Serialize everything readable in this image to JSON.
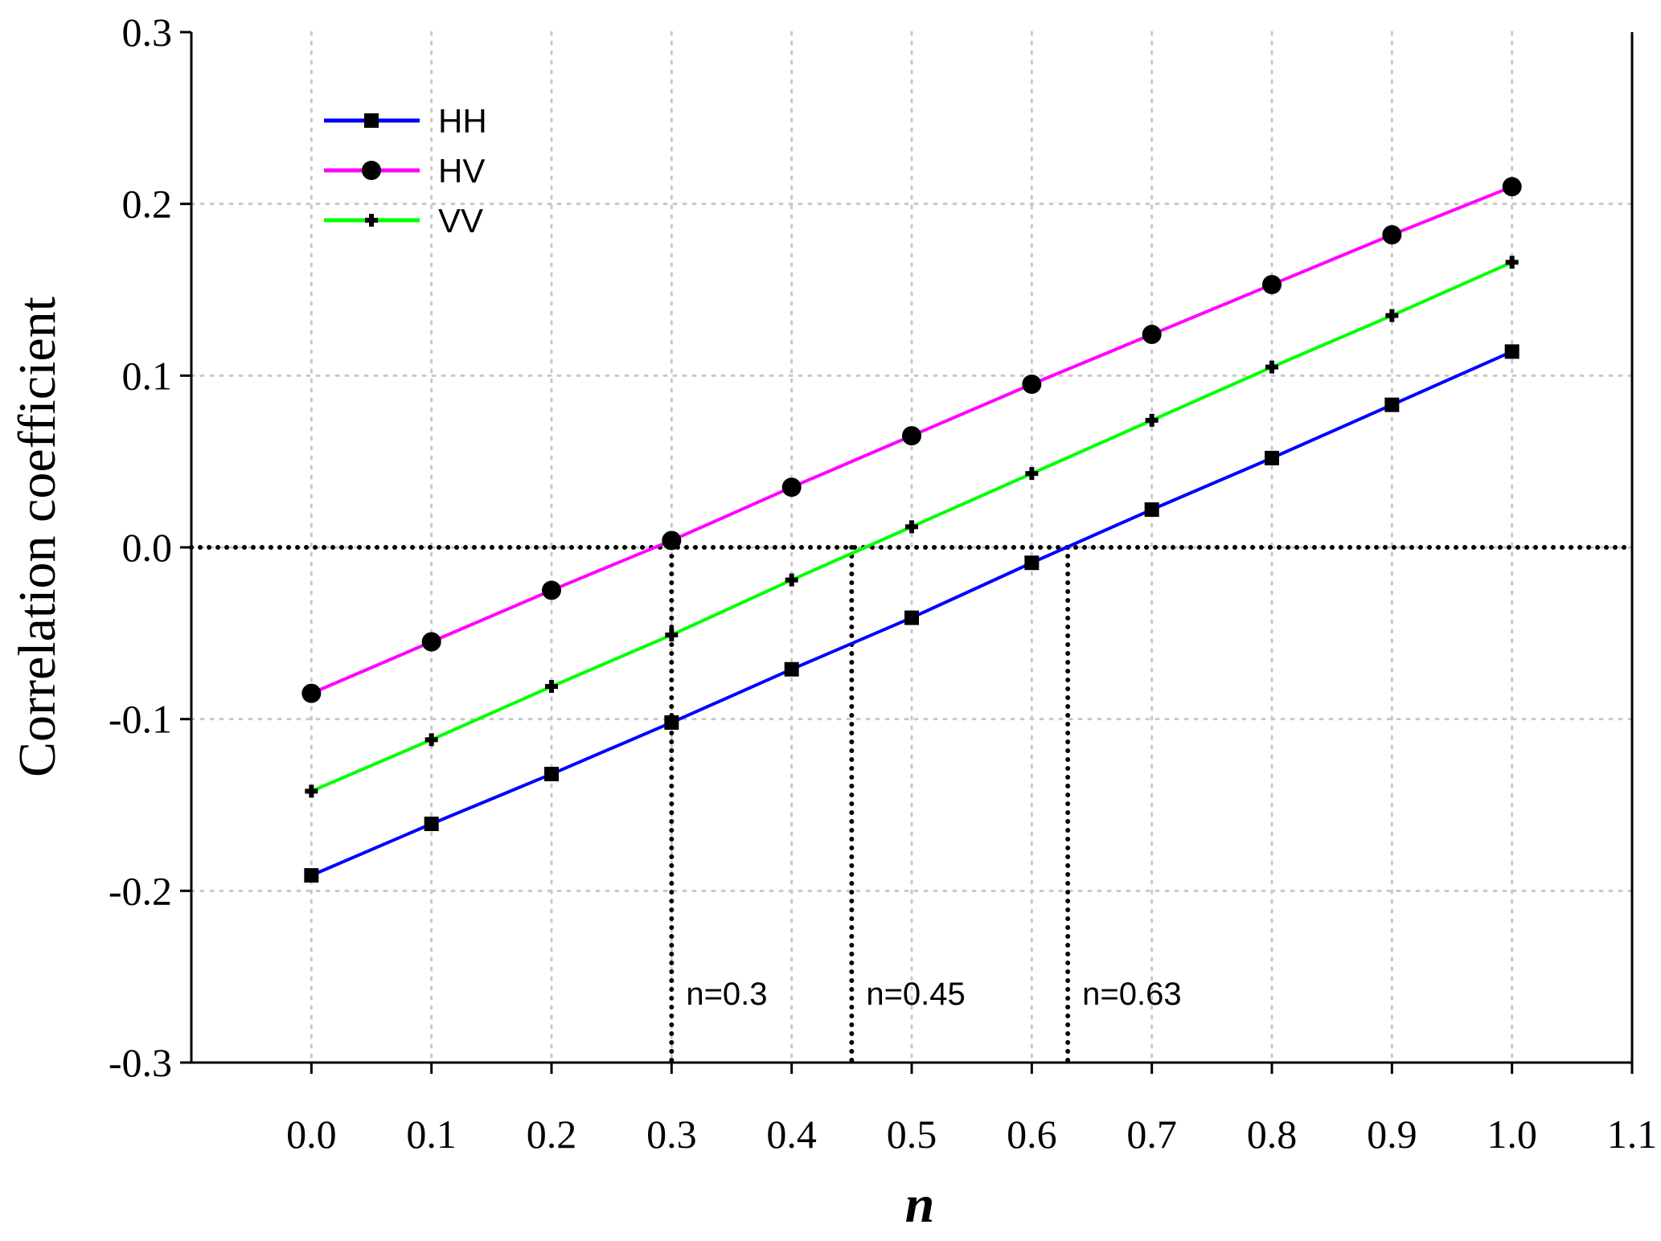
{
  "chart_data": {
    "type": "line",
    "title": "",
    "xlabel": "n",
    "ylabel": "Correlation coefficient",
    "xlim": [
      -0.1,
      1.1
    ],
    "ylim": [
      -0.3,
      0.3
    ],
    "grid": true,
    "legend_position": "top-left",
    "x_ticks": [
      "0.0",
      "0.1",
      "0.2",
      "0.3",
      "0.4",
      "0.5",
      "0.6",
      "0.7",
      "0.8",
      "0.9",
      "1.0",
      "1.1"
    ],
    "y_ticks": [
      "-0.3",
      "-0.2",
      "-0.1",
      "0.0",
      "0.1",
      "0.2",
      "0.3"
    ],
    "x": [
      0.0,
      0.1,
      0.2,
      0.3,
      0.4,
      0.5,
      0.6,
      0.7,
      0.8,
      0.9,
      1.0
    ],
    "series": [
      {
        "name": "HH",
        "color": "#0000ff",
        "marker": "square",
        "values": [
          -0.191,
          -0.161,
          -0.132,
          -0.102,
          -0.071,
          -0.041,
          -0.009,
          0.022,
          0.052,
          0.083,
          0.114
        ]
      },
      {
        "name": "HV",
        "color": "#ff00ff",
        "marker": "circle",
        "values": [
          -0.085,
          -0.055,
          -0.025,
          0.004,
          0.035,
          0.065,
          0.095,
          0.124,
          0.153,
          0.182,
          0.21
        ]
      },
      {
        "name": "VV",
        "color": "#00ff00",
        "marker": "plus",
        "values": [
          -0.142,
          -0.112,
          -0.081,
          -0.051,
          -0.019,
          0.012,
          0.043,
          0.074,
          0.105,
          0.135,
          0.166
        ]
      }
    ],
    "reference_lines": {
      "horizontal_y": 0.0,
      "vertical_x": [
        0.3,
        0.45,
        0.63
      ]
    },
    "annotations": [
      {
        "text": "n=0.3",
        "x": 0.3
      },
      {
        "text": "n=0.45",
        "x": 0.45
      },
      {
        "text": "n=0.63",
        "x": 0.63
      }
    ]
  }
}
